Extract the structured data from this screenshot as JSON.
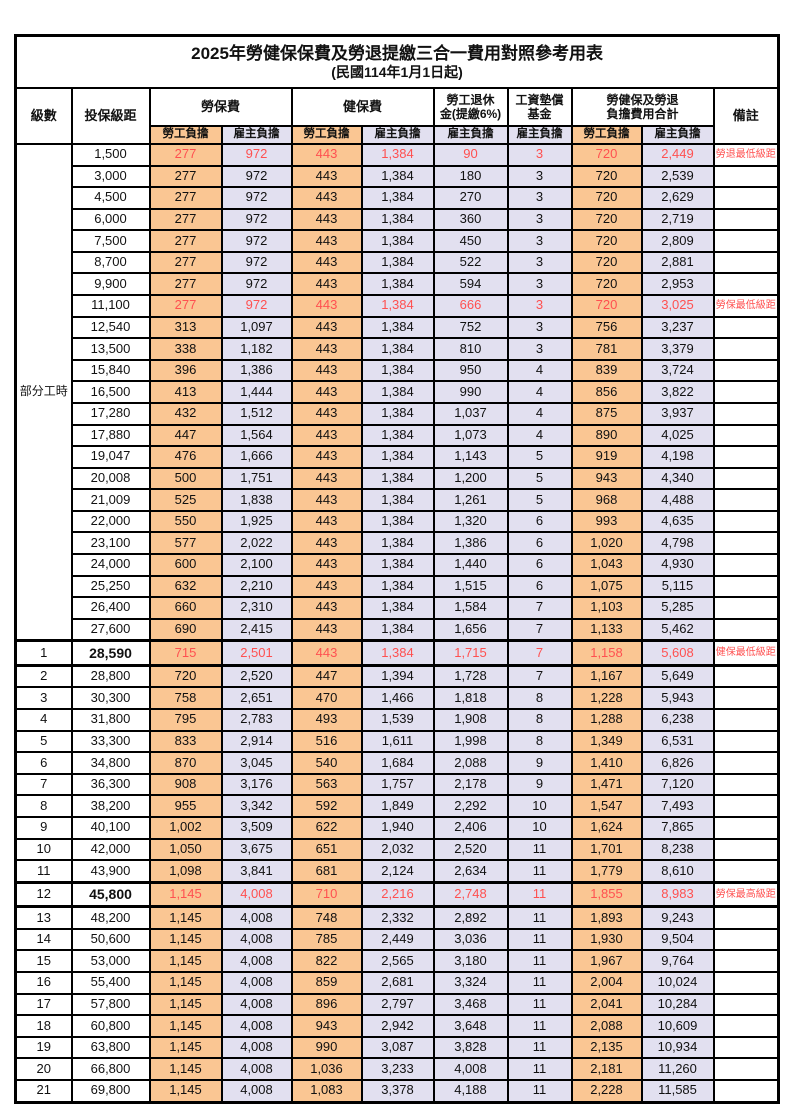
{
  "title": "2025年勞健保保費及勞退提繳三合一費用對照參考用表",
  "subtitle": "(民國114年1月1日起)",
  "columns": {
    "level": "級數",
    "bracket": "投保級距",
    "labor_fee": "勞保費",
    "health_fee": "健保費",
    "pension": [
      "勞工退休",
      "金(提繳6%)"
    ],
    "wage_fund": [
      "工資墊償",
      "基金"
    ],
    "total": [
      "勞健保及勞退",
      "負擔費用合計"
    ],
    "remark": "備註",
    "employee_share": "勞工負擔",
    "employer_share": "雇主負擔"
  },
  "part_time_label": "部分工時",
  "part_time_rowspan": 23,
  "colors": {
    "employee_bg": "#FAC693",
    "employer_bg": "#E2E0F0",
    "red_text": "#FF5050",
    "border": "#000000"
  },
  "rows": [
    {
      "level": "",
      "bracket": "1,500",
      "values": [
        "277",
        "972",
        "443",
        "1,384",
        "90",
        "3",
        "720",
        "2,449"
      ],
      "remark": "勞退最低級距",
      "red": true
    },
    {
      "level": "",
      "bracket": "3,000",
      "values": [
        "277",
        "972",
        "443",
        "1,384",
        "180",
        "3",
        "720",
        "2,539"
      ],
      "remark": ""
    },
    {
      "level": "",
      "bracket": "4,500",
      "values": [
        "277",
        "972",
        "443",
        "1,384",
        "270",
        "3",
        "720",
        "2,629"
      ],
      "remark": ""
    },
    {
      "level": "",
      "bracket": "6,000",
      "values": [
        "277",
        "972",
        "443",
        "1,384",
        "360",
        "3",
        "720",
        "2,719"
      ],
      "remark": ""
    },
    {
      "level": "",
      "bracket": "7,500",
      "values": [
        "277",
        "972",
        "443",
        "1,384",
        "450",
        "3",
        "720",
        "2,809"
      ],
      "remark": ""
    },
    {
      "level": "",
      "bracket": "8,700",
      "values": [
        "277",
        "972",
        "443",
        "1,384",
        "522",
        "3",
        "720",
        "2,881"
      ],
      "remark": ""
    },
    {
      "level": "",
      "bracket": "9,900",
      "values": [
        "277",
        "972",
        "443",
        "1,384",
        "594",
        "3",
        "720",
        "2,953"
      ],
      "remark": ""
    },
    {
      "level": "",
      "bracket": "11,100",
      "values": [
        "277",
        "972",
        "443",
        "1,384",
        "666",
        "3",
        "720",
        "3,025"
      ],
      "remark": "勞保最低級距",
      "red": true
    },
    {
      "level": "",
      "bracket": "12,540",
      "values": [
        "313",
        "1,097",
        "443",
        "1,384",
        "752",
        "3",
        "756",
        "3,237"
      ],
      "remark": ""
    },
    {
      "level": "",
      "bracket": "13,500",
      "values": [
        "338",
        "1,182",
        "443",
        "1,384",
        "810",
        "3",
        "781",
        "3,379"
      ],
      "remark": ""
    },
    {
      "level": "",
      "bracket": "15,840",
      "values": [
        "396",
        "1,386",
        "443",
        "1,384",
        "950",
        "4",
        "839",
        "3,724"
      ],
      "remark": ""
    },
    {
      "level": "",
      "bracket": "16,500",
      "values": [
        "413",
        "1,444",
        "443",
        "1,384",
        "990",
        "4",
        "856",
        "3,822"
      ],
      "remark": ""
    },
    {
      "level": "",
      "bracket": "17,280",
      "values": [
        "432",
        "1,512",
        "443",
        "1,384",
        "1,037",
        "4",
        "875",
        "3,937"
      ],
      "remark": ""
    },
    {
      "level": "",
      "bracket": "17,880",
      "values": [
        "447",
        "1,564",
        "443",
        "1,384",
        "1,073",
        "4",
        "890",
        "4,025"
      ],
      "remark": ""
    },
    {
      "level": "",
      "bracket": "19,047",
      "values": [
        "476",
        "1,666",
        "443",
        "1,384",
        "1,143",
        "5",
        "919",
        "4,198"
      ],
      "remark": ""
    },
    {
      "level": "",
      "bracket": "20,008",
      "values": [
        "500",
        "1,751",
        "443",
        "1,384",
        "1,200",
        "5",
        "943",
        "4,340"
      ],
      "remark": ""
    },
    {
      "level": "",
      "bracket": "21,009",
      "values": [
        "525",
        "1,838",
        "443",
        "1,384",
        "1,261",
        "5",
        "968",
        "4,488"
      ],
      "remark": ""
    },
    {
      "level": "",
      "bracket": "22,000",
      "values": [
        "550",
        "1,925",
        "443",
        "1,384",
        "1,320",
        "6",
        "993",
        "4,635"
      ],
      "remark": ""
    },
    {
      "level": "",
      "bracket": "23,100",
      "values": [
        "577",
        "2,022",
        "443",
        "1,384",
        "1,386",
        "6",
        "1,020",
        "4,798"
      ],
      "remark": ""
    },
    {
      "level": "",
      "bracket": "24,000",
      "values": [
        "600",
        "2,100",
        "443",
        "1,384",
        "1,440",
        "6",
        "1,043",
        "4,930"
      ],
      "remark": ""
    },
    {
      "level": "",
      "bracket": "25,250",
      "values": [
        "632",
        "2,210",
        "443",
        "1,384",
        "1,515",
        "6",
        "1,075",
        "5,115"
      ],
      "remark": ""
    },
    {
      "level": "",
      "bracket": "26,400",
      "values": [
        "660",
        "2,310",
        "443",
        "1,384",
        "1,584",
        "7",
        "1,103",
        "5,285"
      ],
      "remark": ""
    },
    {
      "level": "",
      "bracket": "27,600",
      "values": [
        "690",
        "2,415",
        "443",
        "1,384",
        "1,656",
        "7",
        "1,133",
        "5,462"
      ],
      "remark": ""
    },
    {
      "level": "1",
      "bracket": "28,590",
      "values": [
        "715",
        "2,501",
        "443",
        "1,384",
        "1,715",
        "7",
        "1,158",
        "5,608"
      ],
      "remark": "健保最低級距",
      "red": true,
      "bold": true,
      "thick": true
    },
    {
      "level": "2",
      "bracket": "28,800",
      "values": [
        "720",
        "2,520",
        "447",
        "1,394",
        "1,728",
        "7",
        "1,167",
        "5,649"
      ],
      "remark": ""
    },
    {
      "level": "3",
      "bracket": "30,300",
      "values": [
        "758",
        "2,651",
        "470",
        "1,466",
        "1,818",
        "8",
        "1,228",
        "5,943"
      ],
      "remark": ""
    },
    {
      "level": "4",
      "bracket": "31,800",
      "values": [
        "795",
        "2,783",
        "493",
        "1,539",
        "1,908",
        "8",
        "1,288",
        "6,238"
      ],
      "remark": ""
    },
    {
      "level": "5",
      "bracket": "33,300",
      "values": [
        "833",
        "2,914",
        "516",
        "1,611",
        "1,998",
        "8",
        "1,349",
        "6,531"
      ],
      "remark": ""
    },
    {
      "level": "6",
      "bracket": "34,800",
      "values": [
        "870",
        "3,045",
        "540",
        "1,684",
        "2,088",
        "9",
        "1,410",
        "6,826"
      ],
      "remark": ""
    },
    {
      "level": "7",
      "bracket": "36,300",
      "values": [
        "908",
        "3,176",
        "563",
        "1,757",
        "2,178",
        "9",
        "1,471",
        "7,120"
      ],
      "remark": ""
    },
    {
      "level": "8",
      "bracket": "38,200",
      "values": [
        "955",
        "3,342",
        "592",
        "1,849",
        "2,292",
        "10",
        "1,547",
        "7,493"
      ],
      "remark": ""
    },
    {
      "level": "9",
      "bracket": "40,100",
      "values": [
        "1,002",
        "3,509",
        "622",
        "1,940",
        "2,406",
        "10",
        "1,624",
        "7,865"
      ],
      "remark": ""
    },
    {
      "level": "10",
      "bracket": "42,000",
      "values": [
        "1,050",
        "3,675",
        "651",
        "2,032",
        "2,520",
        "11",
        "1,701",
        "8,238"
      ],
      "remark": ""
    },
    {
      "level": "11",
      "bracket": "43,900",
      "values": [
        "1,098",
        "3,841",
        "681",
        "2,124",
        "2,634",
        "11",
        "1,779",
        "8,610"
      ],
      "remark": ""
    },
    {
      "level": "12",
      "bracket": "45,800",
      "values": [
        "1,145",
        "4,008",
        "710",
        "2,216",
        "2,748",
        "11",
        "1,855",
        "8,983"
      ],
      "remark": "勞保最高級距",
      "red": true,
      "bold": true,
      "thick": true
    },
    {
      "level": "13",
      "bracket": "48,200",
      "values": [
        "1,145",
        "4,008",
        "748",
        "2,332",
        "2,892",
        "11",
        "1,893",
        "9,243"
      ],
      "remark": ""
    },
    {
      "level": "14",
      "bracket": "50,600",
      "values": [
        "1,145",
        "4,008",
        "785",
        "2,449",
        "3,036",
        "11",
        "1,930",
        "9,504"
      ],
      "remark": ""
    },
    {
      "level": "15",
      "bracket": "53,000",
      "values": [
        "1,145",
        "4,008",
        "822",
        "2,565",
        "3,180",
        "11",
        "1,967",
        "9,764"
      ],
      "remark": ""
    },
    {
      "level": "16",
      "bracket": "55,400",
      "values": [
        "1,145",
        "4,008",
        "859",
        "2,681",
        "3,324",
        "11",
        "2,004",
        "10,024"
      ],
      "remark": ""
    },
    {
      "level": "17",
      "bracket": "57,800",
      "values": [
        "1,145",
        "4,008",
        "896",
        "2,797",
        "3,468",
        "11",
        "2,041",
        "10,284"
      ],
      "remark": ""
    },
    {
      "level": "18",
      "bracket": "60,800",
      "values": [
        "1,145",
        "4,008",
        "943",
        "2,942",
        "3,648",
        "11",
        "2,088",
        "10,609"
      ],
      "remark": ""
    },
    {
      "level": "19",
      "bracket": "63,800",
      "values": [
        "1,145",
        "4,008",
        "990",
        "3,087",
        "3,828",
        "11",
        "2,135",
        "10,934"
      ],
      "remark": ""
    },
    {
      "level": "20",
      "bracket": "66,800",
      "values": [
        "1,145",
        "4,008",
        "1,036",
        "3,233",
        "4,008",
        "11",
        "2,181",
        "11,260"
      ],
      "remark": ""
    },
    {
      "level": "21",
      "bracket": "69,800",
      "values": [
        "1,145",
        "4,008",
        "1,083",
        "3,378",
        "4,188",
        "11",
        "2,228",
        "11,585"
      ],
      "remark": ""
    }
  ]
}
